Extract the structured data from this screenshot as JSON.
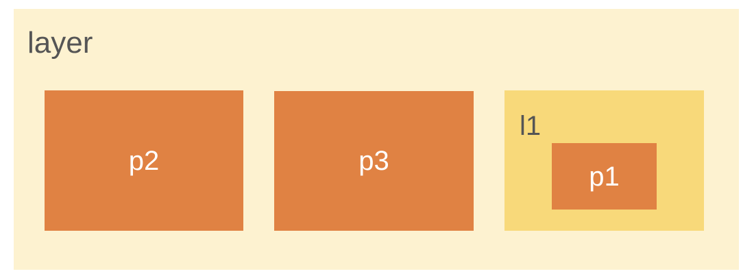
{
  "diagram": {
    "layer": {
      "label": "layer",
      "fill": "#FDF2D0",
      "text_color": "#555555"
    },
    "blocks": {
      "p2": {
        "label": "p2",
        "fill": "#E08243",
        "text_color": "#FFFFFF"
      },
      "p3": {
        "label": "p3",
        "fill": "#E08243",
        "text_color": "#FFFFFF"
      }
    },
    "sublayer": {
      "label": "l1",
      "fill": "#F8D97A",
      "text_color": "#555555",
      "child": {
        "label": "p1",
        "fill": "#E08243",
        "text_color": "#FFFFFF"
      }
    }
  }
}
